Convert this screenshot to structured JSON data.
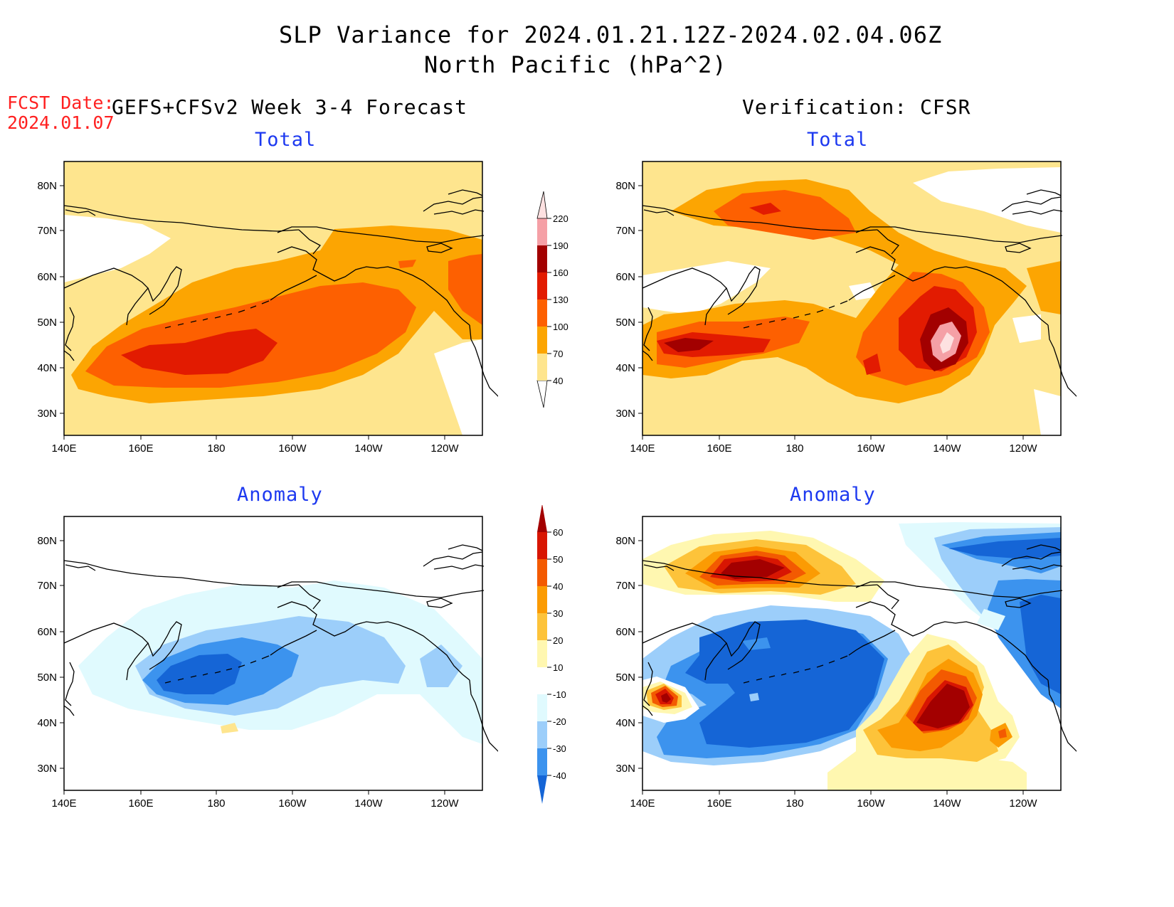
{
  "header": {
    "title_line1": "SLP Variance for 2024.01.21.12Z-2024.02.04.06Z",
    "title_line2": "North Pacific (hPa^2)",
    "fcst_label": "FCST Date:",
    "fcst_date": "2024.01.07",
    "left_heading": "GEFS+CFSv2 Week 3-4 Forecast",
    "right_heading": "Verification: CFSR"
  },
  "panels": {
    "forecast_total": {
      "subtitle": "Total"
    },
    "verification_total": {
      "subtitle": "Total"
    },
    "forecast_anomaly": {
      "subtitle": "Anomaly"
    },
    "verification_anomaly": {
      "subtitle": "Anomaly"
    }
  },
  "axes": {
    "lat_labels": [
      "80N",
      "70N",
      "60N",
      "50N",
      "40N",
      "30N"
    ],
    "lon_labels": [
      "140E",
      "160E",
      "180",
      "160W",
      "140W",
      "120W"
    ]
  },
  "colorbars": {
    "total": {
      "levels": [
        "40",
        "70",
        "100",
        "130",
        "160",
        "190",
        "220"
      ],
      "colors": [
        "#fee58e",
        "#fca502",
        "#fd6001",
        "#e21b01",
        "#a20000",
        "#f5a0a6",
        "#fde1e1"
      ]
    },
    "anomaly": {
      "levels": [
        "-40",
        "-30",
        "-20",
        "-10",
        "10",
        "20",
        "30",
        "40",
        "50",
        "60"
      ],
      "colors": [
        "#1565d6",
        "#3c93ee",
        "#9ccefa",
        "#e0fafe",
        "#ffffff",
        "#fff7b0",
        "#fdc33a",
        "#fb9b03",
        "#f35a01",
        "#d81602",
        "#a30000"
      ]
    }
  }
}
